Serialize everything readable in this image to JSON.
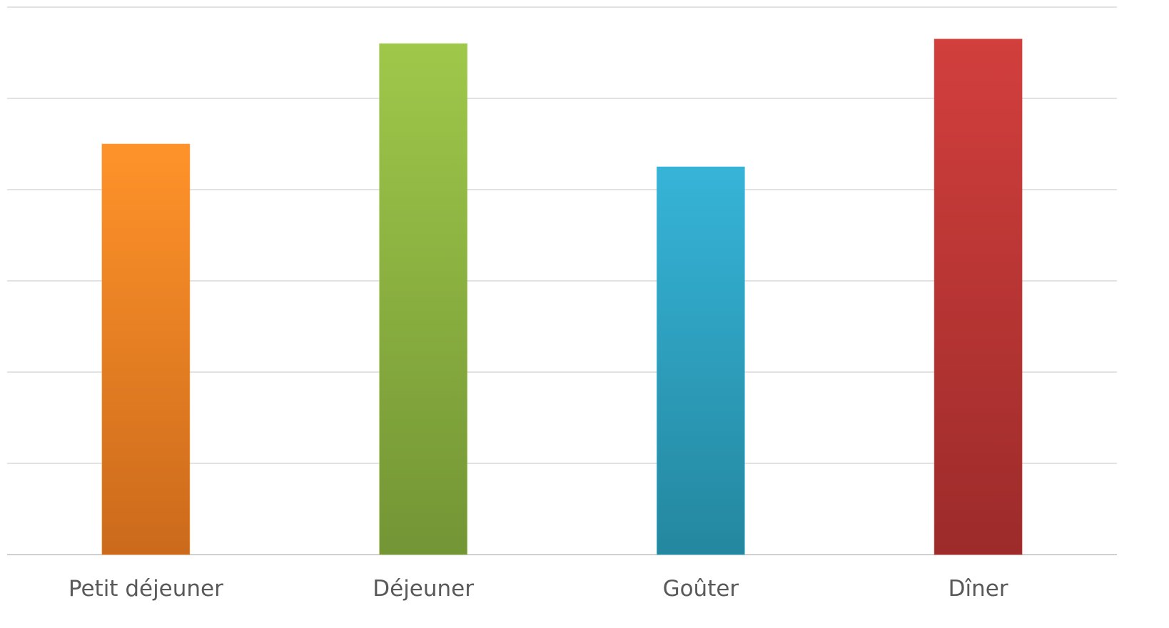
{
  "chart_data": {
    "type": "bar",
    "title": "",
    "xlabel": "",
    "ylabel": "",
    "categories": [
      "Petit déjeuner",
      "Déjeuner",
      "Goûter",
      "Dîner"
    ],
    "values": [
      4.5,
      5.6,
      4.25,
      5.65
    ],
    "ylim": [
      0,
      6
    ],
    "y_gridlines": [
      0,
      1,
      2,
      3,
      4,
      5,
      6
    ],
    "y_tick_labels_visible": false,
    "grid": true,
    "legend": "none",
    "colors": [
      {
        "top": "#ff932a",
        "bottom": "#cb6a1c"
      },
      {
        "top": "#9fc84a",
        "bottom": "#739535"
      },
      {
        "top": "#36b4d8",
        "bottom": "#24879f"
      },
      {
        "top": "#d23f3d",
        "bottom": "#9c2b2a"
      }
    ]
  }
}
